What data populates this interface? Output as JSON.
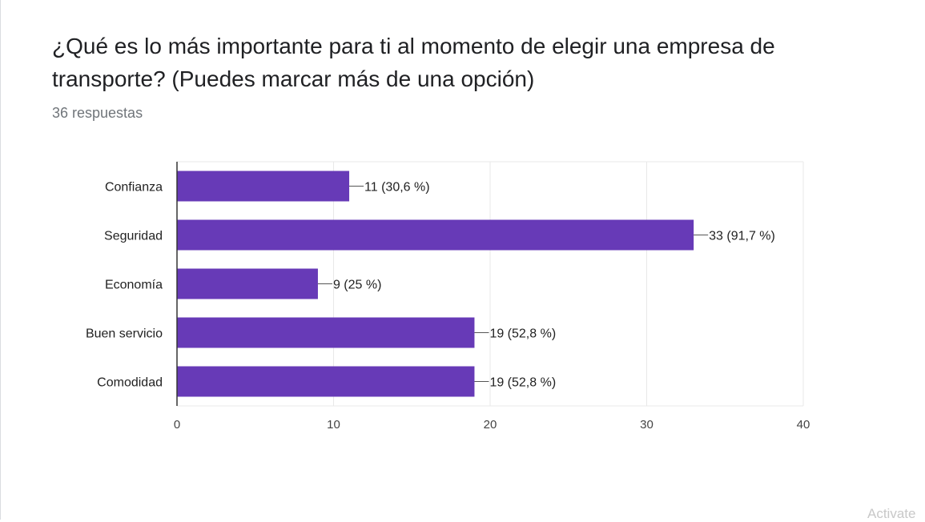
{
  "question": {
    "title": "¿Qué es lo más importante para ti al momento de elegir una empresa de transporte? (Puedes marcar más de una opción)",
    "responses": "36 respuestas"
  },
  "colors": {
    "bar": "#673ab7",
    "grid": "#e8e8e8",
    "axis": "#333333",
    "label": "#222222"
  },
  "chart_data": {
    "type": "bar",
    "orientation": "horizontal",
    "categories": [
      "Confianza",
      "Seguridad",
      "Economía",
      "Buen servicio",
      "Comodidad"
    ],
    "values": [
      11,
      33,
      9,
      19,
      19
    ],
    "data_labels": [
      "11 (30,6 %)",
      "33 (91,7 %)",
      "9 (25 %)",
      "19 (52,8 %)",
      "19 (52,8 %)"
    ],
    "xlim": [
      0,
      40
    ],
    "xticks": [
      0,
      10,
      20,
      30,
      40
    ],
    "grid": true
  },
  "watermark": "Activate"
}
